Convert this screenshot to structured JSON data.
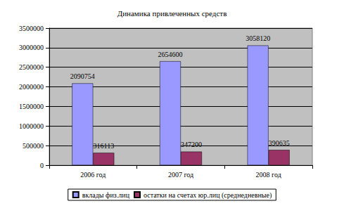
{
  "chart_data": {
    "type": "bar",
    "title": "Динамика привлеченных средств",
    "categories": [
      "2006 год",
      "2007 год",
      "2008 год"
    ],
    "series": [
      {
        "name": "вклады физ.лиц",
        "color": "#9999ff",
        "values": [
          2090754,
          2654600,
          3058120
        ]
      },
      {
        "name": "остатки на счетах юр.лиц (среднедневные)",
        "color": "#993366",
        "values": [
          316113,
          347200,
          390635
        ]
      }
    ],
    "ylim": [
      0,
      3500000
    ],
    "yticks": [
      0,
      500000,
      1000000,
      1500000,
      2000000,
      2500000,
      3000000,
      3500000
    ],
    "grid": true,
    "legend": "bottom",
    "data_labels": true
  }
}
